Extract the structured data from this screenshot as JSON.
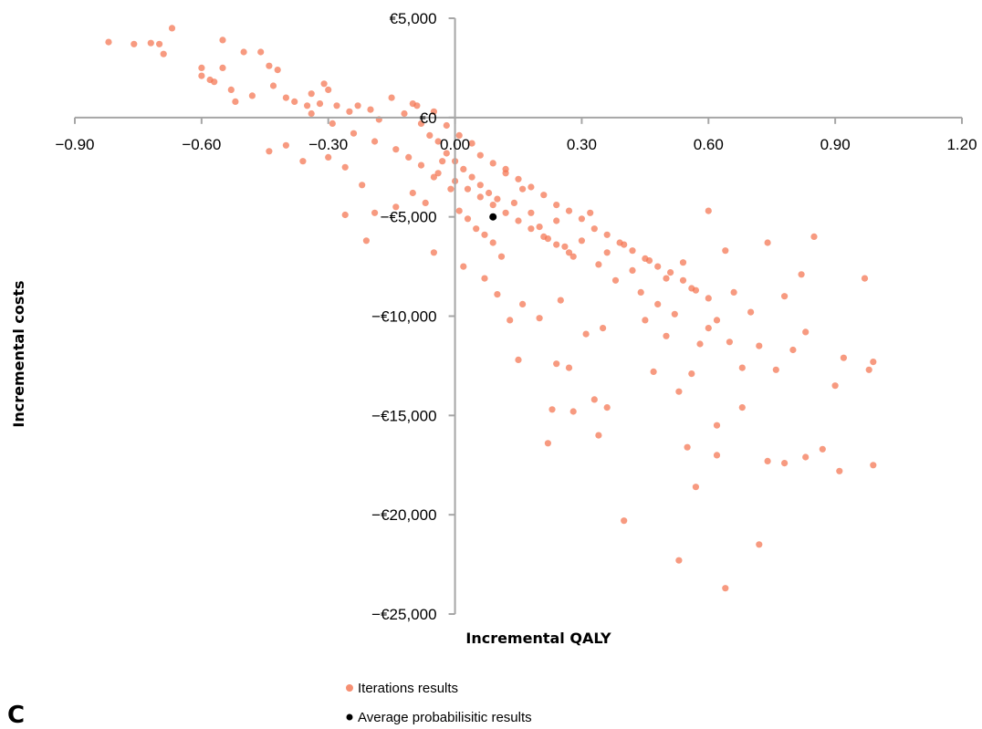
{
  "panel_label": "C",
  "chart_data": {
    "type": "scatter",
    "xlabel": "Incremental QALY",
    "ylabel": "Incremental costs",
    "xlim": [
      -0.9,
      1.2
    ],
    "ylim": [
      -25000,
      5000
    ],
    "x_ticks": [
      -0.9,
      -0.6,
      -0.3,
      0.0,
      0.3,
      0.6,
      0.9,
      1.2
    ],
    "x_tick_labels": [
      "−0.90",
      "−0.60",
      "−0.30",
      "0.00",
      "0.30",
      "0.60",
      "0.90",
      "1.20"
    ],
    "y_ticks": [
      5000,
      0,
      -5000,
      -10000,
      -15000,
      -20000,
      -25000
    ],
    "y_tick_labels": [
      "€5,000",
      "€0",
      "−€5,000",
      "−€10,000",
      "−€15,000",
      "−€20,000",
      "−€25,000"
    ],
    "grid": false,
    "legend_position": "bottom-center",
    "series": [
      {
        "name": "Iterations results",
        "color": "#f4734f",
        "points": [
          [
            -0.82,
            3800
          ],
          [
            -0.76,
            3700
          ],
          [
            -0.72,
            3750
          ],
          [
            -0.7,
            3700
          ],
          [
            -0.69,
            3200
          ],
          [
            -0.67,
            4500
          ],
          [
            -0.6,
            2500
          ],
          [
            -0.6,
            2100
          ],
          [
            -0.58,
            1900
          ],
          [
            -0.57,
            1800
          ],
          [
            -0.55,
            3900
          ],
          [
            -0.55,
            2500
          ],
          [
            -0.53,
            1400
          ],
          [
            -0.52,
            800
          ],
          [
            -0.5,
            3300
          ],
          [
            -0.48,
            1100
          ],
          [
            -0.46,
            3300
          ],
          [
            -0.44,
            2600
          ],
          [
            -0.43,
            1600
          ],
          [
            -0.42,
            2400
          ],
          [
            -0.4,
            1000
          ],
          [
            -0.38,
            800
          ],
          [
            -0.35,
            600
          ],
          [
            -0.34,
            1200
          ],
          [
            -0.32,
            700
          ],
          [
            -0.31,
            1700
          ],
          [
            -0.3,
            1400
          ],
          [
            -0.28,
            600
          ],
          [
            -0.25,
            300
          ],
          [
            -0.23,
            600
          ],
          [
            -0.2,
            400
          ],
          [
            -0.18,
            -100
          ],
          [
            -0.15,
            1000
          ],
          [
            -0.12,
            200
          ],
          [
            -0.1,
            700
          ],
          [
            -0.08,
            -300
          ],
          [
            -0.06,
            -900
          ],
          [
            -0.04,
            -1200
          ],
          [
            -0.02,
            -1800
          ],
          [
            0.0,
            -2200
          ],
          [
            0.02,
            -2600
          ],
          [
            0.04,
            -3000
          ],
          [
            0.06,
            -3400
          ],
          [
            0.08,
            -3800
          ],
          [
            0.1,
            -4100
          ],
          [
            0.12,
            -2600
          ],
          [
            0.14,
            -4300
          ],
          [
            0.16,
            -3600
          ],
          [
            0.18,
            -4800
          ],
          [
            0.2,
            -5500
          ],
          [
            0.22,
            -6100
          ],
          [
            0.24,
            -5200
          ],
          [
            0.26,
            -6500
          ],
          [
            0.28,
            -7000
          ],
          [
            0.3,
            -6200
          ],
          [
            0.32,
            -4800
          ],
          [
            0.34,
            -7400
          ],
          [
            0.36,
            -6800
          ],
          [
            0.38,
            -8200
          ],
          [
            0.4,
            -6400
          ],
          [
            0.42,
            -7700
          ],
          [
            0.44,
            -8800
          ],
          [
            0.46,
            -7200
          ],
          [
            0.48,
            -9400
          ],
          [
            0.5,
            -8100
          ],
          [
            0.52,
            -9900
          ],
          [
            0.54,
            -7300
          ],
          [
            0.56,
            -8600
          ],
          [
            0.58,
            -11400
          ],
          [
            0.6,
            -4700
          ],
          [
            0.62,
            -10200
          ],
          [
            0.64,
            -6700
          ],
          [
            0.66,
            -8800
          ],
          [
            0.68,
            -12600
          ],
          [
            0.7,
            -9800
          ],
          [
            0.72,
            -11500
          ],
          [
            0.74,
            -6300
          ],
          [
            0.76,
            -12700
          ],
          [
            0.78,
            -9000
          ],
          [
            0.8,
            -11700
          ],
          [
            0.82,
            -7900
          ],
          [
            0.83,
            -10800
          ],
          [
            0.85,
            -6000
          ],
          [
            0.87,
            -16700
          ],
          [
            0.9,
            -13500
          ],
          [
            0.92,
            -12100
          ],
          [
            0.97,
            -8100
          ],
          [
            0.98,
            -12700
          ],
          [
            0.99,
            -12300
          ],
          [
            0.99,
            -17500
          ],
          [
            0.91,
            -17800
          ],
          [
            0.83,
            -17100
          ],
          [
            0.78,
            -17400
          ],
          [
            0.74,
            -17300
          ],
          [
            0.72,
            -21500
          ],
          [
            0.62,
            -17000
          ],
          [
            0.62,
            -15500
          ],
          [
            0.55,
            -16600
          ],
          [
            0.57,
            -18600
          ],
          [
            0.53,
            -22300
          ],
          [
            0.64,
            -23700
          ],
          [
            0.4,
            -20300
          ],
          [
            0.22,
            -16400
          ],
          [
            0.34,
            -16000
          ],
          [
            0.23,
            -14700
          ],
          [
            0.28,
            -14800
          ],
          [
            0.33,
            -14200
          ],
          [
            0.36,
            -14600
          ],
          [
            0.15,
            -12200
          ],
          [
            0.24,
            -12400
          ],
          [
            0.27,
            -12600
          ],
          [
            0.13,
            -10200
          ],
          [
            0.2,
            -10100
          ],
          [
            0.31,
            -10900
          ],
          [
            -0.44,
            -1700
          ],
          [
            -0.4,
            -1400
          ],
          [
            -0.36,
            -2200
          ],
          [
            -0.3,
            -2000
          ],
          [
            -0.26,
            -2500
          ],
          [
            -0.22,
            -3400
          ],
          [
            -0.19,
            -4800
          ],
          [
            -0.14,
            -4500
          ],
          [
            -0.1,
            -3800
          ],
          [
            -0.07,
            -4300
          ],
          [
            -0.05,
            -3000
          ],
          [
            -0.03,
            -2200
          ],
          [
            -0.01,
            -3600
          ],
          [
            0.01,
            -4700
          ],
          [
            0.03,
            -5100
          ],
          [
            0.05,
            -5600
          ],
          [
            0.07,
            -5900
          ],
          [
            0.09,
            -6300
          ],
          [
            0.11,
            -7000
          ],
          [
            -0.26,
            -4900
          ],
          [
            -0.21,
            -6200
          ],
          [
            -0.05,
            -6800
          ],
          [
            0.02,
            -7500
          ],
          [
            0.07,
            -8100
          ],
          [
            0.1,
            -8900
          ],
          [
            0.16,
            -9400
          ],
          [
            0.25,
            -9200
          ],
          [
            0.35,
            -10600
          ],
          [
            0.45,
            -10200
          ],
          [
            0.5,
            -11000
          ],
          [
            0.47,
            -12800
          ],
          [
            0.53,
            -13800
          ],
          [
            0.56,
            -12900
          ],
          [
            0.6,
            -10600
          ],
          [
            0.65,
            -11300
          ],
          [
            0.68,
            -14600
          ],
          [
            -0.09,
            600
          ],
          [
            -0.05,
            300
          ],
          [
            -0.02,
            -400
          ],
          [
            0.01,
            -900
          ],
          [
            0.04,
            -1300
          ],
          [
            0.06,
            -1900
          ],
          [
            0.09,
            -2300
          ],
          [
            0.12,
            -2800
          ],
          [
            0.15,
            -3100
          ],
          [
            0.18,
            -3500
          ],
          [
            0.21,
            -3900
          ],
          [
            0.24,
            -4400
          ],
          [
            0.27,
            -4700
          ],
          [
            0.3,
            -5100
          ],
          [
            0.33,
            -5600
          ],
          [
            0.36,
            -5900
          ],
          [
            0.39,
            -6300
          ],
          [
            0.42,
            -6700
          ],
          [
            0.45,
            -7100
          ],
          [
            0.48,
            -7500
          ],
          [
            0.51,
            -7800
          ],
          [
            0.54,
            -8200
          ],
          [
            0.57,
            -8700
          ],
          [
            0.6,
            -9100
          ],
          [
            -0.34,
            200
          ],
          [
            -0.29,
            -300
          ],
          [
            -0.24,
            -800
          ],
          [
            -0.19,
            -1200
          ],
          [
            -0.14,
            -1600
          ],
          [
            -0.11,
            -2000
          ],
          [
            -0.08,
            -2400
          ],
          [
            -0.04,
            -2800
          ],
          [
            0.0,
            -3200
          ],
          [
            0.03,
            -3600
          ],
          [
            0.06,
            -4000
          ],
          [
            0.09,
            -4400
          ],
          [
            0.12,
            -4800
          ],
          [
            0.15,
            -5200
          ],
          [
            0.18,
            -5600
          ],
          [
            0.21,
            -6000
          ],
          [
            0.24,
            -6400
          ],
          [
            0.27,
            -6800
          ]
        ]
      },
      {
        "name": "Average probabilisitic results",
        "color": "#000000",
        "points": [
          [
            0.09,
            -5000
          ]
        ]
      }
    ]
  }
}
